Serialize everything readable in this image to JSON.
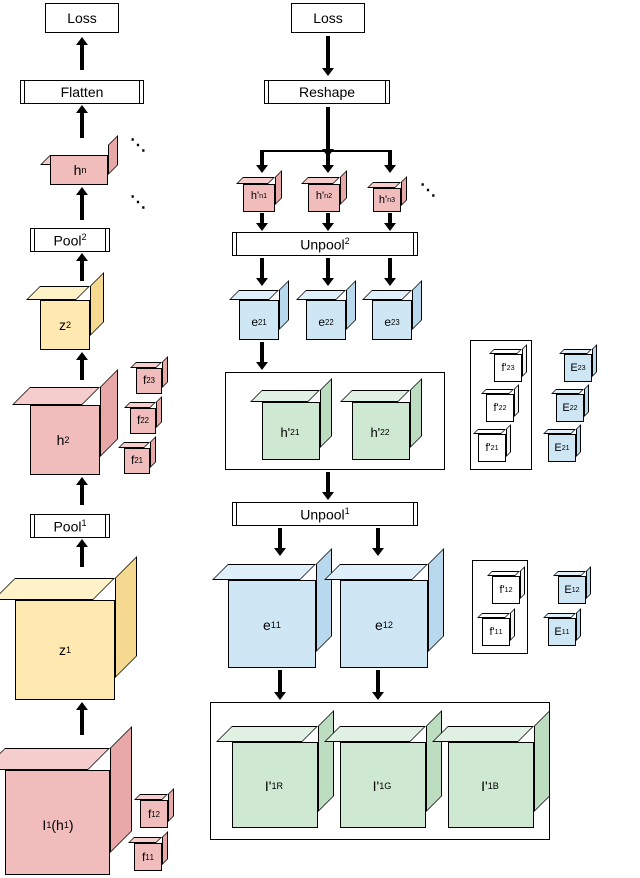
{
  "colors": {
    "pink_front": "#f0bcbc",
    "pink_side": "#e8a8a8",
    "pink_top": "#f5cdcd",
    "yellow_front": "#ffe9b0",
    "yellow_side": "#f5d990",
    "yellow_top": "#fff1c8",
    "blue_front": "#cfe6f5",
    "blue_side": "#b8d8ed",
    "blue_top": "#e0f0fa",
    "green_front": "#cfe8d2",
    "green_side": "#bcddc0",
    "green_top": "#e0f1e3",
    "white_front": "#ffffff",
    "white_side": "#f0f0f0",
    "white_top": "#ffffff",
    "line": "#000000"
  },
  "labels": {
    "loss": "Loss",
    "flatten": "Flatten",
    "reshape": "Reshape",
    "hn": "h<sup>n</sup>",
    "pool2": "Pool<sup>2</sup>",
    "z2": "z<sup>2</sup>",
    "h2": "h<sup>2</sup>",
    "f2_1": "f<sup>2</sup><sub>1</sub>",
    "f2_2": "f<sup>2</sup><sub>2</sub>",
    "f2_3": "f<sup>2</sup><sub>3</sub>",
    "pool1": "Pool<sup>1</sup>",
    "z1": "z<sup>1</sup>",
    "I1": "I<sup>1</sup> (h<sup>1</sup>)",
    "f1_1": "f<sup>1</sup><sub>1</sub>",
    "f1_2": "f<sup>1</sup><sub>2</sub>",
    "hpn1": "h'<sup>n</sup><sub>1</sub>",
    "hpn2": "h'<sup>n</sup><sub>2</sub>",
    "hpn3": "h'<sup>n</sup><sub>3</sub>",
    "unpool2": "Unpool<sup>2</sup>",
    "e2_1": "e<sup>2</sup><sub>1</sub>",
    "e2_2": "e<sup>2</sup><sub>2</sub>",
    "e2_3": "e<sup>2</sup><sub>3</sub>",
    "hp2_1": "h'<sup>2</sup><sub>1</sub>",
    "hp2_2": "h'<sup>2</sup><sub>2</sub>",
    "unpool1": "Unpool<sup>1</sup>",
    "e1_1": "e<sup>1</sup><sub>1</sub>",
    "e1_2": "e<sup>1</sup><sub>2</sub>",
    "IpR": "I'<sup>1</sup><sub>R</sub>",
    "IpG": "I'<sup>1</sup><sub>G</sub>",
    "IpB": "I'<sup>1</sup><sub>B</sub>",
    "fp2_1": "f'<sup>2</sup><sub>1</sub>",
    "fp2_2": "f'<sup>2</sup><sub>2</sub>",
    "fp2_3": "f'<sup>2</sup><sub>3</sub>",
    "E2_1": "E<sup>2</sup><sub>1</sub>",
    "E2_2": "E<sup>2</sup><sub>2</sub>",
    "E2_3": "E<sup>2</sup><sub>3</sub>",
    "fp1_1": "f'<sup>1</sup><sub>1</sub>",
    "fp1_2": "f'<sup>1</sup><sub>2</sub>",
    "E1_1": "E<sup>1</sup><sub>1</sub>",
    "E1_2": "E<sup>1</sup><sub>2</sub>",
    "dots": "⋱"
  },
  "diagram_type": "flowchart",
  "background": "#ffffff"
}
